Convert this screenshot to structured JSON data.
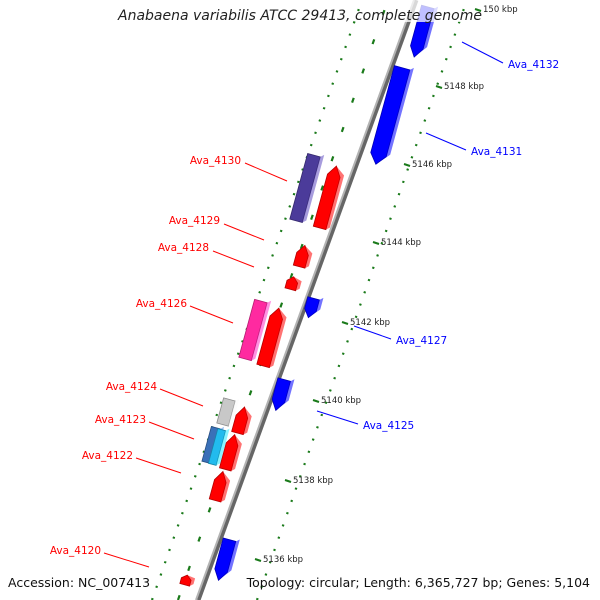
{
  "title": "Anabaena variabilis ATCC 29413, complete genome",
  "footer": {
    "accession": "Accession: NC_007413",
    "summary": "Topology: circular; Length: 6,365,727 bp; Genes: 5,104"
  },
  "ticks": [
    {
      "label": "150 kbp"
    },
    {
      "label": "5148 kbp"
    },
    {
      "label": "5146 kbp"
    },
    {
      "label": "5144 kbp"
    },
    {
      "label": "5142 kbp"
    },
    {
      "label": "5140 kbp"
    },
    {
      "label": "5138 kbp"
    },
    {
      "label": "5136 kbp"
    }
  ],
  "genes": [
    {
      "label": "Ava_4132",
      "strand": "minus",
      "color": "#0000ff"
    },
    {
      "label": "Ava_4131",
      "strand": "minus",
      "color": "#0000ff"
    },
    {
      "label": "Ava_4130",
      "strand": "plus",
      "color": "#ff0000"
    },
    {
      "label": "Ava_4129",
      "strand": "plus",
      "color": "#ff0000"
    },
    {
      "label": "Ava_4128",
      "strand": "plus",
      "color": "#ff0000"
    },
    {
      "label": "Ava_4127",
      "strand": "minus",
      "color": "#0000ff"
    },
    {
      "label": "Ava_4126",
      "strand": "plus",
      "color": "#ff0000"
    },
    {
      "label": "Ava_4125",
      "strand": "minus",
      "color": "#0000ff"
    },
    {
      "label": "Ava_4124",
      "strand": "plus",
      "color": "#ff0000"
    },
    {
      "label": "Ava_4123",
      "strand": "plus",
      "color": "#ff0000"
    },
    {
      "label": "Ava_4122",
      "strand": "plus",
      "color": "#ff0000"
    },
    {
      "label": "Ava_4120",
      "strand": "plus",
      "color": "#ff0000"
    }
  ],
  "colors": {
    "plus_strand": "#ff0000",
    "minus_strand": "#0000ff",
    "backbone": "#888888",
    "tick_marks": "#1a7a1a",
    "feature_navy": "#4b3b9a",
    "feature_magenta": "#ff2aa0",
    "feature_gray": "#c8c8c8",
    "feature_cyan": "#22bbee",
    "feature_steelblue": "#3a70b8"
  }
}
